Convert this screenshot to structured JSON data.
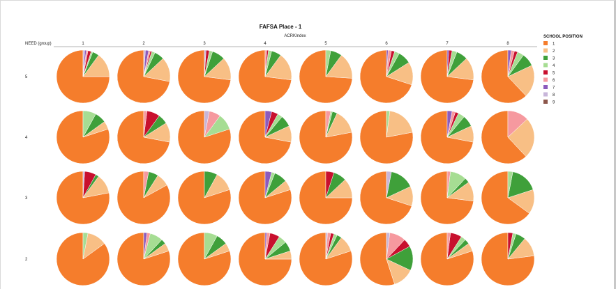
{
  "chart_data": {
    "type": "pie",
    "title": "FAFSA Place - 1",
    "column_axis_label": "ACRKIndex",
    "row_axis_label": "NEED (group)",
    "columns": [
      "1",
      "2",
      "3",
      "4",
      "5",
      "6",
      "7",
      "8"
    ],
    "rows": [
      "5",
      "4",
      "3",
      "2"
    ],
    "legend": {
      "title": "SCHOOL POSITION",
      "placement": "right",
      "items": [
        {
          "label": "1",
          "color": "#f57d2c"
        },
        {
          "label": "2",
          "color": "#f8bf85"
        },
        {
          "label": "3",
          "color": "#3fa03a"
        },
        {
          "label": "4",
          "color": "#a6dd93"
        },
        {
          "label": "5",
          "color": "#c8102e"
        },
        {
          "label": "6",
          "color": "#f6999f"
        },
        {
          "label": "7",
          "color": "#8c5bbd"
        },
        {
          "label": "8",
          "color": "#c8b6da"
        },
        {
          "label": "9",
          "color": "#8c564b"
        }
      ]
    },
    "pies": [
      [
        [
          75,
          15,
          4,
          1,
          2,
          1,
          1,
          1,
          0
        ],
        [
          72,
          15,
          6,
          2,
          1,
          1,
          2,
          1,
          0
        ],
        [
          73,
          14,
          8,
          2,
          2,
          0,
          0,
          1,
          0
        ],
        [
          73,
          17,
          6,
          2,
          1,
          1,
          0,
          0,
          0
        ],
        [
          74,
          16,
          7,
          3,
          0,
          0,
          0,
          0,
          0
        ],
        [
          70,
          14,
          8,
          3,
          2,
          2,
          1,
          0,
          0
        ],
        [
          73,
          14,
          7,
          3,
          2,
          0,
          1,
          0,
          0
        ],
        [
          62,
          20,
          8,
          4,
          2,
          2,
          2,
          0,
          0
        ]
      ],
      [
        [
          80,
          5,
          7,
          8,
          0,
          0,
          0,
          0,
          0
        ],
        [
          72,
          12,
          6,
          0,
          8,
          2,
          0,
          0,
          0
        ],
        [
          80,
          0,
          0,
          10,
          0,
          7,
          0,
          3,
          0
        ],
        [
          72,
          10,
          7,
          3,
          4,
          0,
          4,
          0,
          0
        ],
        [
          78,
          15,
          3,
          1,
          0,
          3,
          0,
          0,
          0
        ],
        [
          78,
          20,
          0,
          2,
          0,
          0,
          0,
          0,
          0
        ],
        [
          72,
          10,
          7,
          4,
          2,
          2,
          3,
          0,
          0
        ],
        [
          62,
          25,
          0,
          0,
          0,
          13,
          0,
          0,
          0
        ]
      ],
      [
        [
          78,
          12,
          2,
          0,
          7,
          0,
          0,
          1,
          0
        ],
        [
          83,
          8,
          6,
          0,
          0,
          3,
          0,
          0,
          0
        ],
        [
          80,
          12,
          8,
          0,
          0,
          0,
          0,
          0,
          0
        ],
        [
          80,
          6,
          8,
          2,
          0,
          0,
          4,
          0,
          0
        ],
        [
          75,
          12,
          8,
          0,
          5,
          0,
          0,
          0,
          0
        ],
        [
          70,
          12,
          15,
          0,
          0,
          0,
          0,
          3,
          0
        ],
        [
          73,
          12,
          3,
          10,
          0,
          2,
          0,
          0,
          0
        ],
        [
          65,
          15,
          17,
          3,
          0,
          0,
          0,
          0,
          0
        ]
      ],
      [
        [
          85,
          12,
          0,
          3,
          0,
          0,
          0,
          0,
          0
        ],
        [
          80,
          5,
          3,
          8,
          0,
          2,
          2,
          0,
          0
        ],
        [
          80,
          5,
          7,
          8,
          0,
          0,
          0,
          0,
          0
        ],
        [
          75,
          5,
          6,
          5,
          6,
          2,
          1,
          0,
          0
        ],
        [
          80,
          10,
          3,
          2,
          2,
          2,
          0,
          1,
          0
        ],
        [
          55,
          13,
          15,
          0,
          5,
          10,
          0,
          2,
          0
        ],
        [
          80,
          5,
          3,
          3,
          7,
          2,
          0,
          0,
          0
        ],
        [
          77,
          12,
          6,
          2,
          3,
          0,
          0,
          0,
          0
        ]
      ]
    ]
  }
}
